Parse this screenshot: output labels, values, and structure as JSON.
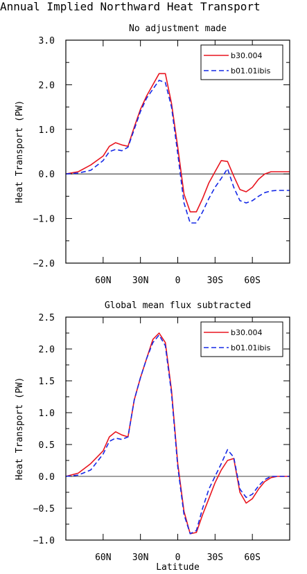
{
  "page": {
    "title": "Annual Implied Northward Heat Transport"
  },
  "chart_data": [
    {
      "type": "line",
      "title": "No adjustment made",
      "xlabel": "",
      "ylabel": "Heat Transport (PW)",
      "xlim": [
        90,
        -90
      ],
      "ylim": [
        -2.0,
        3.0
      ],
      "yticks": [
        -2.0,
        -1.0,
        0.0,
        1.0,
        2.0,
        3.0
      ],
      "ytick_labels": [
        "−2.0",
        "−1.0",
        "0.0",
        "1.0",
        "2.0",
        "3.0"
      ],
      "xticks": [
        60,
        30,
        0,
        -30,
        -60
      ],
      "xtick_labels": [
        "60N",
        "30N",
        "0",
        "30S",
        "60S"
      ],
      "grid": false,
      "zero_line": true,
      "legend": "top-right",
      "series": [
        {
          "name": "b30.004",
          "color": "#e8141e",
          "dash": "solid",
          "x": [
            90,
            80,
            70,
            60,
            55,
            50,
            45,
            40,
            35,
            30,
            25,
            20,
            15,
            10,
            5,
            0,
            -5,
            -10,
            -15,
            -20,
            -25,
            -30,
            -35,
            -40,
            -45,
            -50,
            -55,
            -60,
            -65,
            -70,
            -75,
            -80,
            -85,
            -90
          ],
          "y": [
            0.0,
            0.05,
            0.2,
            0.4,
            0.62,
            0.7,
            0.65,
            0.62,
            1.05,
            1.45,
            1.75,
            2.0,
            2.25,
            2.25,
            1.58,
            0.6,
            -0.45,
            -0.85,
            -0.85,
            -0.55,
            -0.2,
            0.05,
            0.3,
            0.28,
            -0.05,
            -0.35,
            -0.4,
            -0.3,
            -0.12,
            0.0,
            0.05,
            0.05,
            0.05,
            0.05
          ]
        },
        {
          "name": "b01.01ibis",
          "color": "#1428e6",
          "dash": "dashed",
          "x": [
            90,
            80,
            70,
            60,
            55,
            50,
            45,
            40,
            35,
            30,
            25,
            20,
            15,
            10,
            5,
            0,
            -5,
            -10,
            -15,
            -20,
            -25,
            -30,
            -35,
            -40,
            -45,
            -50,
            -55,
            -60,
            -65,
            -70,
            -75,
            -80,
            -85,
            -90
          ],
          "y": [
            0.0,
            0.02,
            0.08,
            0.3,
            0.5,
            0.55,
            0.52,
            0.6,
            1.0,
            1.4,
            1.7,
            1.9,
            2.1,
            2.05,
            1.5,
            0.45,
            -0.65,
            -1.1,
            -1.1,
            -0.85,
            -0.55,
            -0.3,
            -0.1,
            0.12,
            -0.3,
            -0.6,
            -0.65,
            -0.6,
            -0.5,
            -0.42,
            -0.38,
            -0.37,
            -0.37,
            -0.37
          ]
        }
      ]
    },
    {
      "type": "line",
      "title": "Global mean flux subtracted",
      "xlabel": "Latitude",
      "ylabel": "Heat Transport (PW)",
      "xlim": [
        90,
        -90
      ],
      "ylim": [
        -1.0,
        2.5
      ],
      "yticks": [
        -1.0,
        -0.5,
        0.0,
        0.5,
        1.0,
        1.5,
        2.0,
        2.5
      ],
      "ytick_labels": [
        "−1.0",
        "−0.5",
        "0.0",
        "0.5",
        "1.0",
        "1.5",
        "2.0",
        "2.5"
      ],
      "xticks": [
        60,
        30,
        0,
        -30,
        -60
      ],
      "xtick_labels": [
        "60N",
        "30N",
        "0",
        "30S",
        "60S"
      ],
      "grid": false,
      "zero_line": true,
      "legend": "top-right",
      "series": [
        {
          "name": "b30.004",
          "color": "#e8141e",
          "dash": "solid",
          "x": [
            90,
            80,
            70,
            60,
            55,
            50,
            45,
            40,
            35,
            30,
            25,
            20,
            15,
            10,
            5,
            0,
            -5,
            -10,
            -15,
            -20,
            -25,
            -30,
            -35,
            -40,
            -45,
            -50,
            -55,
            -60,
            -65,
            -70,
            -75,
            -80,
            -85,
            -90
          ],
          "y": [
            0.0,
            0.05,
            0.2,
            0.4,
            0.62,
            0.7,
            0.65,
            0.62,
            1.2,
            1.55,
            1.85,
            2.15,
            2.25,
            2.1,
            1.35,
            0.2,
            -0.55,
            -0.9,
            -0.88,
            -0.6,
            -0.35,
            -0.1,
            0.1,
            0.25,
            0.28,
            -0.25,
            -0.42,
            -0.35,
            -0.2,
            -0.08,
            -0.02,
            0.0,
            0.0,
            0.0
          ]
        },
        {
          "name": "b01.01ibis",
          "color": "#1428e6",
          "dash": "dashed",
          "x": [
            90,
            80,
            70,
            60,
            55,
            50,
            45,
            40,
            35,
            30,
            25,
            20,
            15,
            10,
            5,
            0,
            -5,
            -10,
            -15,
            -20,
            -25,
            -30,
            -35,
            -40,
            -45,
            -50,
            -55,
            -60,
            -65,
            -70,
            -75,
            -80,
            -85,
            -90
          ],
          "y": [
            0.0,
            0.02,
            0.1,
            0.35,
            0.55,
            0.6,
            0.58,
            0.62,
            1.2,
            1.55,
            1.85,
            2.1,
            2.22,
            2.05,
            1.3,
            0.15,
            -0.6,
            -0.9,
            -0.85,
            -0.5,
            -0.2,
            0.0,
            0.2,
            0.42,
            0.3,
            -0.2,
            -0.33,
            -0.28,
            -0.15,
            -0.05,
            0.0,
            0.0,
            0.0,
            0.0
          ]
        }
      ]
    }
  ]
}
